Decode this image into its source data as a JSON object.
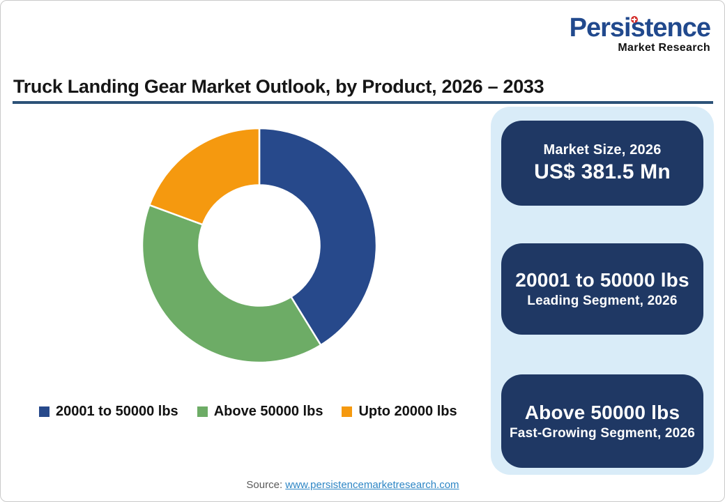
{
  "logo": {
    "name": "Persistence",
    "subtitle": "Market Research",
    "brand_color": "#21498D",
    "dot_color": "#D42B28"
  },
  "header": {
    "title": "Truck Landing Gear Market Outlook, by Product, 2026 – 2033",
    "rule_color": "#2C5278"
  },
  "chart_data": {
    "type": "pie",
    "subtype": "donut",
    "title": "Truck Landing Gear Market Outlook, by Product, 2026 – 2033",
    "categories": [
      "20001 to 50000 lbs",
      "Above 50000 lbs",
      "Upto 20000 lbs"
    ],
    "values": [
      41.2,
      39.4,
      19.4
    ],
    "values_note": "percent share estimated from arc angles; no data labels shown",
    "colors": [
      "#27498B",
      "#6DAC66",
      "#F5990F"
    ],
    "start_angle_deg": 0,
    "direction": "clockwise",
    "inner_radius_ratio": 0.515,
    "legend_position": "bottom"
  },
  "panel": {
    "background": "#D9ECF8",
    "card_color": "#1F3864",
    "cards": [
      {
        "line1": "Market Size, 2026",
        "line2": "US$ 381.5 Mn"
      },
      {
        "line1": "20001 to 50000 lbs",
        "line2": "Leading Segment, 2026"
      },
      {
        "line1": "Above 50000 lbs",
        "line2": "Fast-Growing Segment, 2026"
      }
    ]
  },
  "source": {
    "label": "Source: ",
    "link": "www.persistencemarketresearch.com"
  }
}
